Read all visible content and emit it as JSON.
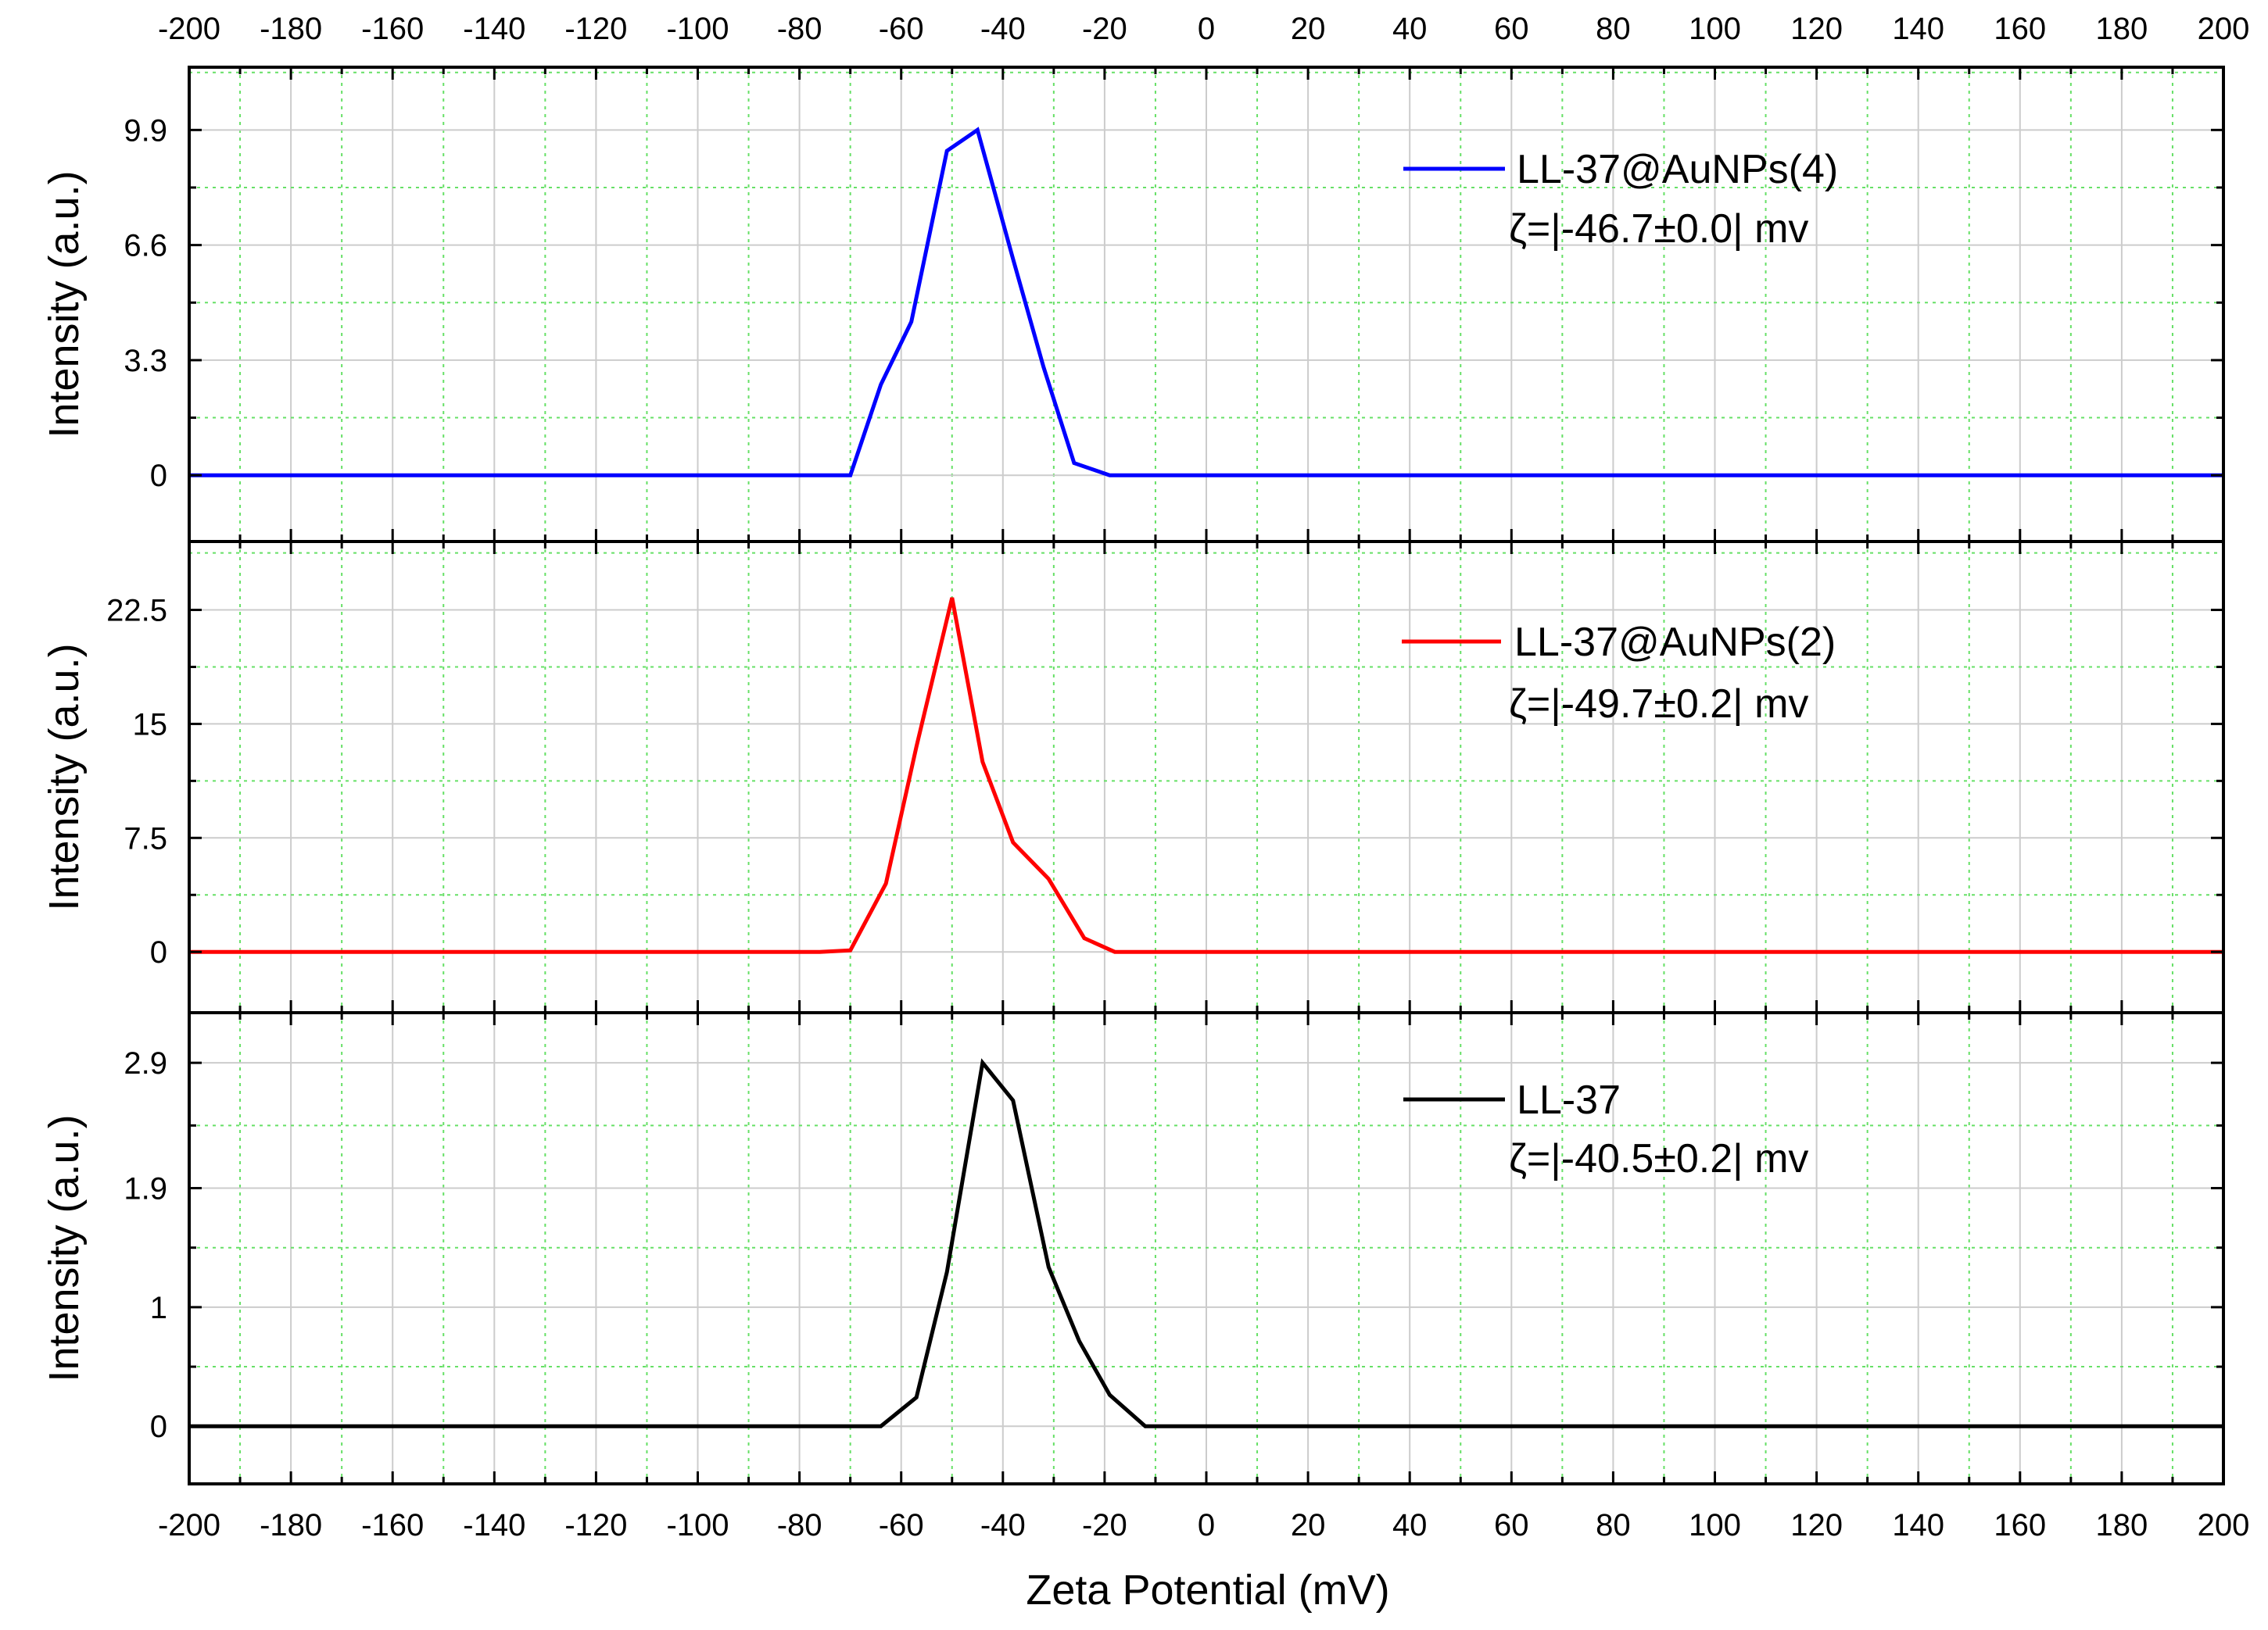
{
  "chart_data": [
    {
      "type": "line",
      "panel": "top",
      "ylabel": "Intensity (a.u.)",
      "ylim": [
        -1.9,
        11.7
      ],
      "yticks": [
        "0",
        "3.3",
        "6.6",
        "9.9"
      ],
      "ytick_values": [
        0,
        3.3,
        6.6,
        9.9
      ],
      "xlim": [
        -200,
        200
      ],
      "series": [
        {
          "name": "LL-37@AuNPs(4)",
          "annotation": "ζ=|-46.7±0.0|  mv",
          "color": "#0000ff",
          "x": [
            -200,
            -70,
            -64,
            -58,
            -51,
            -45,
            -38,
            -32,
            -26,
            -19,
            200
          ],
          "y": [
            0,
            0,
            2.6,
            4.4,
            9.3,
            9.9,
            6.2,
            3.1,
            0.35,
            0,
            0
          ]
        }
      ]
    },
    {
      "type": "line",
      "panel": "middle",
      "ylabel": "Intensity (a.u.)",
      "ylim": [
        -4.0,
        27.0
      ],
      "yticks": [
        "0",
        "7.5",
        "15",
        "22.5"
      ],
      "ytick_values": [
        0,
        7.5,
        15,
        22.5
      ],
      "xlim": [
        -200,
        200
      ],
      "series": [
        {
          "name": "LL-37@AuNPs(2)",
          "annotation": "ζ=|-49.7±0.2|  mv",
          "color": "#ff0000",
          "x": [
            -200,
            -76,
            -70,
            -63,
            -57,
            -50,
            -44,
            -38,
            -31,
            -24,
            -18,
            200
          ],
          "y": [
            0,
            0,
            0.1,
            4.5,
            13.5,
            23.3,
            12.5,
            7.2,
            4.8,
            0.9,
            0,
            0
          ]
        }
      ]
    },
    {
      "type": "line",
      "panel": "bottom",
      "ylabel": "Intensity (a.u.)",
      "ylim": [
        -0.46,
        3.3
      ],
      "yticks": [
        "0",
        "1",
        "1.9",
        "2.9"
      ],
      "ytick_values": [
        0,
        0.95,
        1.9,
        2.9
      ],
      "xlim": [
        -200,
        200
      ],
      "series": [
        {
          "name": "LL-37",
          "annotation": "ζ=|-40.5±0.2|  mv",
          "color": "#000000",
          "x": [
            -200,
            -64,
            -57,
            -51,
            -44,
            -38,
            -31,
            -25,
            -19,
            -12,
            200
          ],
          "y": [
            0,
            0,
            0.23,
            1.23,
            2.9,
            2.6,
            1.27,
            0.68,
            0.25,
            0,
            0
          ]
        }
      ]
    }
  ],
  "axes": {
    "xlabel": "Zeta Potential (mV)",
    "xticks": [
      "-200",
      "-180",
      "-160",
      "-140",
      "-120",
      "-100",
      "-80",
      "-60",
      "-40",
      "-20",
      "0",
      "20",
      "40",
      "60",
      "80",
      "100",
      "120",
      "140",
      "160",
      "180",
      "200"
    ],
    "xtick_values": [
      -200,
      -180,
      -160,
      -140,
      -120,
      -100,
      -80,
      -60,
      -40,
      -20,
      0,
      20,
      40,
      60,
      80,
      100,
      120,
      140,
      160,
      180,
      200
    ]
  },
  "colors": {
    "major_grid": "#cccccc",
    "minor_grid": "#66e066",
    "frame": "#000000"
  }
}
